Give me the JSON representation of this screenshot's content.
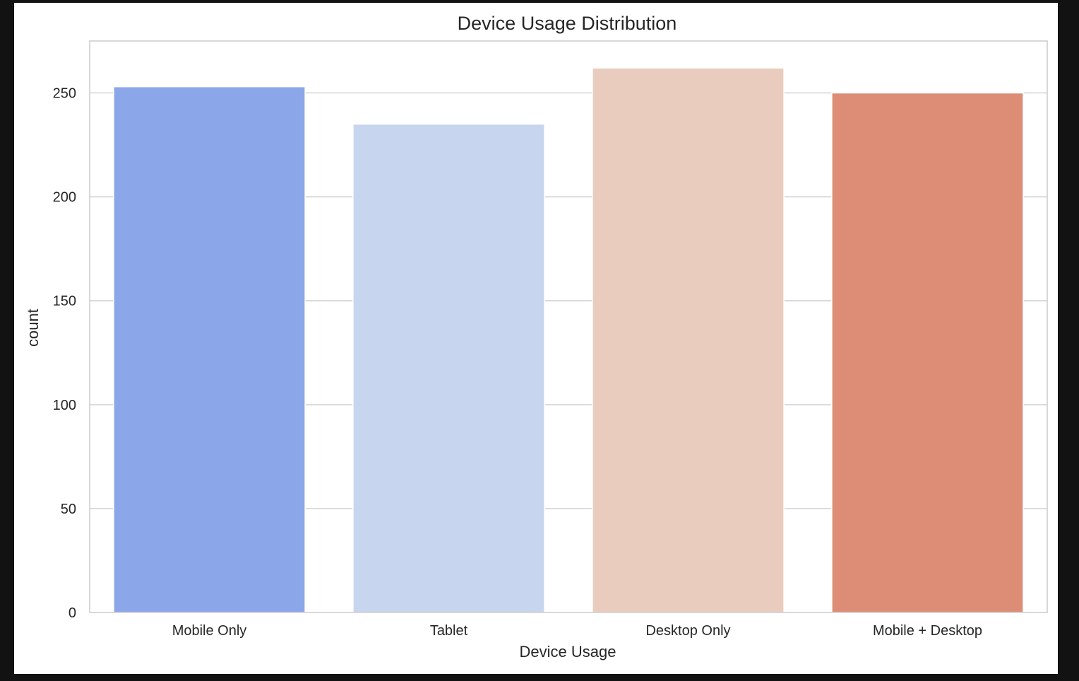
{
  "chart_data": {
    "type": "bar",
    "title": "Device Usage Distribution",
    "xlabel": "Device Usage",
    "ylabel": "count",
    "categories": [
      "Mobile Only",
      "Tablet",
      "Desktop Only",
      "Mobile + Desktop"
    ],
    "values": [
      253,
      235,
      262,
      250
    ],
    "ylim": [
      0,
      275
    ],
    "yticks": [
      0,
      50,
      100,
      150,
      200,
      250
    ],
    "grid": true,
    "colors": [
      "#8ba6e9",
      "#c8d5ef",
      "#e9ccbe",
      "#dd8d76"
    ]
  }
}
